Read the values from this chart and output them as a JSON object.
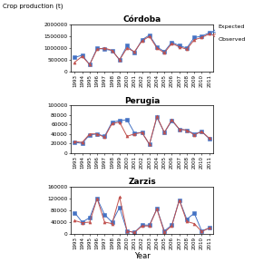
{
  "years": [
    1993,
    1994,
    1995,
    1996,
    1997,
    1998,
    1999,
    2000,
    2001,
    2002,
    2003,
    2004,
    2005,
    2006,
    2007,
    2008,
    2009,
    2010,
    2011
  ],
  "cordoba_expected": [
    600000,
    700000,
    300000,
    1000000,
    950000,
    900000,
    500000,
    1100000,
    800000,
    1350000,
    1550000,
    1050000,
    850000,
    1250000,
    1100000,
    1000000,
    1450000,
    1500000,
    1650000
  ],
  "cordoba_observed": [
    400000,
    650000,
    300000,
    950000,
    1000000,
    900000,
    500000,
    1000000,
    850000,
    1300000,
    1500000,
    1000000,
    800000,
    1200000,
    1050000,
    950000,
    1350000,
    1450000,
    1600000
  ],
  "perugia_expected": [
    22000,
    20000,
    38000,
    40000,
    35000,
    65000,
    68000,
    70000,
    42000,
    43000,
    18000,
    75000,
    43000,
    68000,
    50000,
    48000,
    40000,
    45000,
    30000
  ],
  "perugia_observed": [
    24000,
    22000,
    40000,
    40000,
    33000,
    62000,
    65000,
    35000,
    40000,
    43000,
    18000,
    77000,
    43000,
    70000,
    50000,
    48000,
    38000,
    45000,
    31000
  ],
  "zarzis_expected": [
    72000,
    40000,
    55000,
    120000,
    65000,
    40000,
    90000,
    10000,
    5000,
    30000,
    30000,
    85000,
    10000,
    30000,
    115000,
    50000,
    70000,
    10000,
    20000
  ],
  "zarzis_observed": [
    45000,
    38000,
    40000,
    120000,
    40000,
    35000,
    125000,
    10000,
    5000,
    27000,
    27000,
    85000,
    5000,
    28000,
    115000,
    42000,
    35000,
    8000,
    20000
  ],
  "color_expected": "#4472C4",
  "color_observed": "#C0504D",
  "marker_expected": "s",
  "marker_observed": "^",
  "title1": "Córdoba",
  "title2": "Perugia",
  "title3": "Zarzis",
  "ylabel": "Crop production (t)",
  "xlabel": "Year",
  "ylim1": [
    0,
    2000000
  ],
  "ylim2": [
    0,
    100000
  ],
  "ylim3": [
    0,
    160000
  ],
  "yticks1": [
    0,
    500000,
    1000000,
    1500000,
    2000000
  ],
  "yticks2": [
    0,
    20000,
    40000,
    60000,
    80000,
    100000
  ],
  "yticks3": [
    0,
    40000,
    80000,
    120000,
    160000
  ],
  "ytick_labels1": [
    "0",
    "500000",
    "1000000",
    "1500000",
    "2000000"
  ],
  "ytick_labels2": [
    "0",
    "20000",
    "40000",
    "60000",
    "80000",
    "100000"
  ],
  "ytick_labels3": [
    "0",
    "40000",
    "80000",
    "120000",
    "160000"
  ]
}
